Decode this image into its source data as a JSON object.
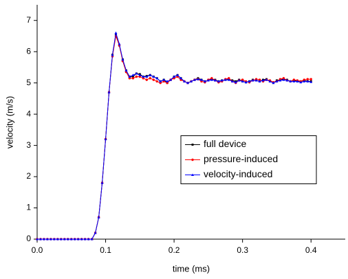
{
  "chart_data": {
    "type": "line",
    "xlabel": "time (ms)",
    "ylabel": "velocity (m/s)",
    "x": [
      0,
      0.005,
      0.01,
      0.015,
      0.02,
      0.025,
      0.03,
      0.035,
      0.04,
      0.045,
      0.05,
      0.055,
      0.06,
      0.065,
      0.07,
      0.075,
      0.08,
      0.085,
      0.09,
      0.095,
      0.1,
      0.105,
      0.11,
      0.115,
      0.12,
      0.125,
      0.13,
      0.135,
      0.14,
      0.145,
      0.15,
      0.155,
      0.16,
      0.165,
      0.17,
      0.175,
      0.18,
      0.185,
      0.19,
      0.195,
      0.2,
      0.205,
      0.21,
      0.215,
      0.22,
      0.225,
      0.23,
      0.235,
      0.24,
      0.245,
      0.25,
      0.255,
      0.26,
      0.265,
      0.27,
      0.275,
      0.28,
      0.285,
      0.29,
      0.295,
      0.3,
      0.305,
      0.31,
      0.315,
      0.32,
      0.325,
      0.33,
      0.335,
      0.34,
      0.345,
      0.35,
      0.355,
      0.36,
      0.365,
      0.37,
      0.375,
      0.38,
      0.385,
      0.39,
      0.395,
      0.4
    ],
    "series": [
      {
        "name": "full device",
        "color": "#000000",
        "marker": "square",
        "values": [
          0,
          0,
          0,
          0,
          0,
          0,
          0,
          0,
          0,
          0,
          0,
          0,
          0,
          0,
          0,
          0,
          0,
          0.2,
          0.7,
          1.8,
          3.2,
          4.7,
          5.9,
          6.55,
          6.2,
          5.75,
          5.4,
          5.2,
          5.2,
          5.3,
          5.28,
          5.2,
          5.22,
          5.25,
          5.2,
          5.15,
          5.05,
          5.1,
          5.0,
          5.1,
          5.2,
          5.25,
          5.15,
          5.05,
          5.0,
          5.05,
          5.1,
          5.15,
          5.1,
          5.05,
          5.08,
          5.12,
          5.1,
          5.05,
          5.08,
          5.1,
          5.12,
          5.08,
          5.05,
          5.1,
          5.05,
          5.02,
          5.05,
          5.1,
          5.08,
          5.05,
          5.1,
          5.12,
          5.05,
          5.0,
          5.08,
          5.1,
          5.12,
          5.1,
          5.05,
          5.08,
          5.05,
          5.05,
          5.08,
          5.05,
          5.05
        ]
      },
      {
        "name": "pressure-induced",
        "color": "#ff0000",
        "marker": "circle",
        "values": [
          0,
          0,
          0,
          0,
          0,
          0,
          0,
          0,
          0,
          0,
          0,
          0,
          0,
          0,
          0,
          0,
          0,
          0.2,
          0.7,
          1.8,
          3.2,
          4.7,
          5.85,
          6.5,
          6.2,
          5.7,
          5.35,
          5.15,
          5.15,
          5.2,
          5.2,
          5.15,
          5.1,
          5.15,
          5.1,
          5.05,
          5.0,
          5.05,
          5.0,
          5.1,
          5.15,
          5.2,
          5.1,
          5.05,
          5.0,
          5.05,
          5.1,
          5.12,
          5.05,
          5.02,
          5.1,
          5.15,
          5.08,
          5.02,
          5.05,
          5.12,
          5.15,
          5.05,
          5.0,
          5.08,
          5.1,
          5.05,
          5.02,
          5.08,
          5.12,
          5.1,
          5.05,
          5.1,
          5.08,
          5.02,
          5.05,
          5.12,
          5.15,
          5.08,
          5.05,
          5.1,
          5.08,
          5.05,
          5.1,
          5.12,
          5.12
        ]
      },
      {
        "name": "velocity-induced",
        "color": "#0000ff",
        "marker": "triangle",
        "values": [
          0,
          0,
          0,
          0,
          0,
          0,
          0,
          0,
          0,
          0,
          0,
          0,
          0,
          0,
          0,
          0,
          0,
          0.2,
          0.7,
          1.8,
          3.2,
          4.7,
          5.9,
          6.6,
          6.25,
          5.75,
          5.4,
          5.2,
          5.25,
          5.3,
          5.25,
          5.2,
          5.2,
          5.25,
          5.2,
          5.15,
          5.05,
          5.1,
          5.05,
          5.1,
          5.2,
          5.25,
          5.15,
          5.05,
          5.0,
          5.05,
          5.1,
          5.12,
          5.1,
          5.05,
          5.08,
          5.1,
          5.08,
          5.05,
          5.08,
          5.1,
          5.1,
          5.05,
          5.02,
          5.08,
          5.05,
          5.02,
          5.05,
          5.08,
          5.08,
          5.05,
          5.08,
          5.1,
          5.05,
          5.0,
          5.05,
          5.08,
          5.1,
          5.08,
          5.05,
          5.05,
          5.05,
          5.02,
          5.05,
          5.05,
          5.03
        ]
      }
    ],
    "xlim": [
      0,
      0.45
    ],
    "xticks": [
      {
        "value": 0,
        "label": "0.0"
      },
      0.1,
      0.2,
      0.3,
      0.4
    ],
    "ylim": [
      0,
      7.5
    ],
    "yticks": [
      0,
      1,
      2,
      3,
      4,
      5,
      6,
      7
    ],
    "grid": false,
    "legend_position": "right"
  }
}
